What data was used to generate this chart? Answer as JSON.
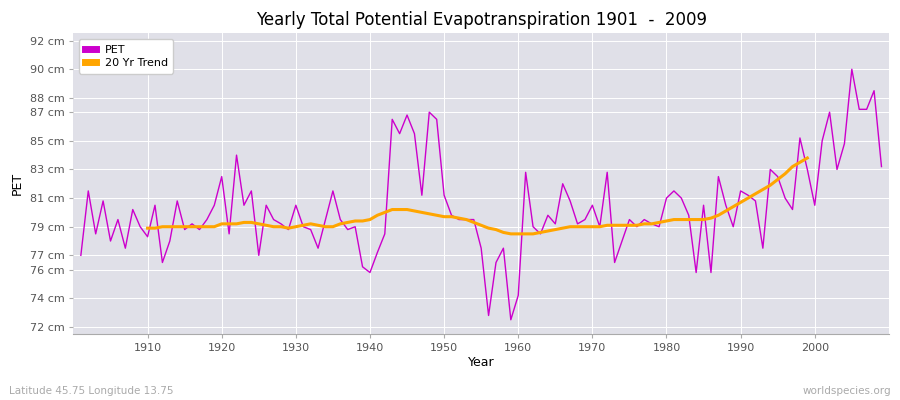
{
  "title": "Yearly Total Potential Evapotranspiration 1901  -  2009",
  "xlabel": "Year",
  "ylabel": "PET",
  "subtitle_left": "Latitude 45.75 Longitude 13.75",
  "subtitle_right": "worldspecies.org",
  "pet_color": "#cc00cc",
  "trend_color": "#ffa500",
  "fig_bg_color": "#ffffff",
  "plot_bg_color": "#e0e0e8",
  "grid_color": "#ffffff",
  "ylim": [
    71.5,
    92.5
  ],
  "ytick_vals": [
    72,
    74,
    76,
    77,
    79,
    81,
    83,
    85,
    87,
    88,
    90,
    92
  ],
  "xlim": [
    1900,
    2010
  ],
  "xtick_vals": [
    1910,
    1920,
    1930,
    1940,
    1950,
    1960,
    1970,
    1980,
    1990,
    2000
  ],
  "years": [
    1901,
    1902,
    1903,
    1904,
    1905,
    1906,
    1907,
    1908,
    1909,
    1910,
    1911,
    1912,
    1913,
    1914,
    1915,
    1916,
    1917,
    1918,
    1919,
    1920,
    1921,
    1922,
    1923,
    1924,
    1925,
    1926,
    1927,
    1928,
    1929,
    1930,
    1931,
    1932,
    1933,
    1934,
    1935,
    1936,
    1937,
    1938,
    1939,
    1940,
    1941,
    1942,
    1943,
    1944,
    1945,
    1946,
    1947,
    1948,
    1949,
    1950,
    1951,
    1952,
    1953,
    1954,
    1955,
    1956,
    1957,
    1958,
    1959,
    1960,
    1961,
    1962,
    1963,
    1964,
    1965,
    1966,
    1967,
    1968,
    1969,
    1970,
    1971,
    1972,
    1973,
    1974,
    1975,
    1976,
    1977,
    1978,
    1979,
    1980,
    1981,
    1982,
    1983,
    1984,
    1985,
    1986,
    1987,
    1988,
    1989,
    1990,
    1991,
    1992,
    1993,
    1994,
    1995,
    1996,
    1997,
    1998,
    1999,
    2000,
    2001,
    2002,
    2003,
    2004,
    2005,
    2006,
    2007,
    2008,
    2009
  ],
  "pet_values": [
    77.0,
    81.5,
    78.5,
    80.8,
    78.0,
    79.5,
    77.5,
    80.2,
    79.0,
    78.3,
    80.5,
    76.5,
    78.0,
    80.8,
    78.8,
    79.2,
    78.8,
    79.5,
    80.5,
    82.5,
    78.5,
    84.0,
    80.5,
    81.5,
    77.0,
    80.5,
    79.5,
    79.2,
    78.8,
    80.5,
    79.0,
    78.8,
    77.5,
    79.5,
    81.5,
    79.5,
    78.8,
    79.0,
    76.2,
    75.8,
    77.2,
    78.5,
    86.5,
    85.5,
    86.8,
    85.5,
    81.2,
    87.0,
    86.5,
    81.2,
    79.8,
    79.5,
    79.5,
    79.5,
    77.5,
    72.8,
    76.5,
    77.5,
    72.5,
    74.2,
    82.8,
    79.0,
    78.5,
    79.8,
    79.2,
    82.0,
    80.8,
    79.2,
    79.5,
    80.5,
    79.0,
    82.8,
    76.5,
    78.0,
    79.5,
    79.0,
    79.5,
    79.2,
    79.0,
    81.0,
    81.5,
    81.0,
    79.8,
    75.8,
    80.5,
    75.8,
    82.5,
    80.5,
    79.0,
    81.5,
    81.2,
    80.8,
    77.5,
    83.0,
    82.5,
    81.0,
    80.2,
    85.2,
    83.0,
    80.5,
    85.0,
    87.0,
    83.0,
    84.8,
    90.0,
    87.2,
    87.2,
    88.5,
    83.2
  ],
  "trend_values": [
    null,
    null,
    null,
    null,
    null,
    null,
    null,
    null,
    null,
    78.9,
    78.9,
    79.0,
    79.0,
    79.0,
    79.0,
    79.0,
    79.0,
    79.0,
    79.0,
    79.2,
    79.2,
    79.2,
    79.3,
    79.3,
    79.2,
    79.1,
    79.0,
    79.0,
    78.9,
    79.0,
    79.1,
    79.2,
    79.1,
    79.0,
    79.0,
    79.2,
    79.3,
    79.4,
    79.4,
    79.5,
    79.8,
    80.0,
    80.2,
    80.2,
    80.2,
    80.1,
    80.0,
    79.9,
    79.8,
    79.7,
    79.7,
    79.6,
    79.5,
    79.3,
    79.1,
    78.9,
    78.8,
    78.6,
    78.5,
    78.5,
    78.5,
    78.5,
    78.6,
    78.7,
    78.8,
    78.9,
    79.0,
    79.0,
    79.0,
    79.0,
    79.0,
    79.1,
    79.1,
    79.1,
    79.1,
    79.1,
    79.2,
    79.2,
    79.3,
    79.4,
    79.5,
    79.5,
    79.5,
    79.5,
    79.5,
    79.6,
    79.8,
    80.1,
    80.4,
    80.7,
    81.0,
    81.3,
    81.6,
    81.9,
    82.3,
    82.7,
    83.2,
    83.5,
    83.8,
    null,
    null,
    null,
    null,
    null,
    null,
    null,
    null,
    null
  ]
}
